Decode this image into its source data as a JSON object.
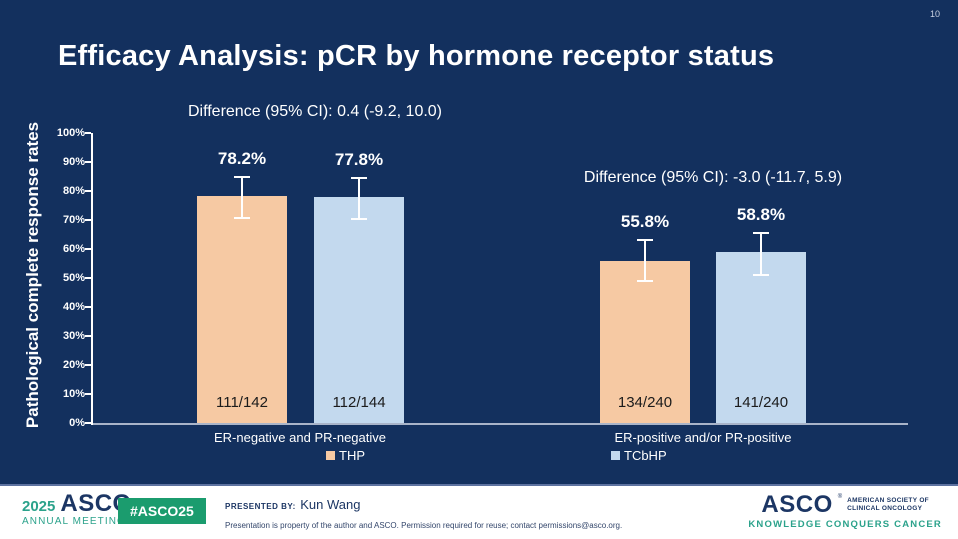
{
  "page_number": "10",
  "title": "Efficacy Analysis: pCR by hormone receptor status",
  "chart_data": {
    "type": "bar",
    "ylabel": "Pathological complete response rates",
    "ylim": [
      0,
      100
    ],
    "ytick_step": 10,
    "ytick_suffix": "%",
    "grid": false,
    "legend_position": "bottom",
    "categories": [
      "ER-negative and PR-negative",
      "ER-positive and/or PR-positive"
    ],
    "series": [
      {
        "name": "THP",
        "color": "#F6C9A3",
        "values": [
          78.2,
          55.8
        ],
        "value_labels": [
          "78.2%",
          "55.8%"
        ],
        "fractions": [
          "111/142",
          "134/240"
        ],
        "ci_upper": [
          85.3,
          63.3
        ],
        "ci_lower": [
          70.3,
          48.7
        ]
      },
      {
        "name": "TCbHP",
        "color": "#C3D9EE",
        "values": [
          77.8,
          58.8
        ],
        "value_labels": [
          "77.8%",
          "58.8%"
        ],
        "fractions": [
          "112/144",
          "141/240"
        ],
        "ci_upper": [
          84.9,
          65.9
        ],
        "ci_lower": [
          69.9,
          50.7
        ]
      }
    ],
    "annotations": [
      "Difference (95% CI): 0.4 (-9.2, 10.0)",
      "Difference (95% CI): -3.0 (-11.7, 5.9)"
    ]
  },
  "footer": {
    "meeting_year": "2025",
    "meeting_logo": "ASCO",
    "meeting_reg": "®",
    "meeting_name_line2": "ANNUAL MEETING",
    "hashtag": "#ASCO25",
    "presented_by_label": "PRESENTED BY:",
    "presenter": "Kun Wang",
    "disclaimer": "Presentation is property of the author and ASCO. Permission required for reuse; contact permissions@asco.org.",
    "asco_logo": "ASCO",
    "asco_reg": "®",
    "asco_society_line1": "AMERICAN SOCIETY OF",
    "asco_society_line2": "CLINICAL ONCOLOGY",
    "asco_tagline": "KNOWLEDGE CONQUERS CANCER"
  },
  "colors": {
    "slide_background": "#13305E",
    "bar_thp": "#F6C9A3",
    "bar_tcbhp": "#C3D9EE",
    "axis": "#FFFFFF",
    "baseline": "#A9B4C9",
    "asco_teal": "#2BA28B",
    "asco_green": "#1B9C6E",
    "asco_navy": "#1C3664"
  }
}
